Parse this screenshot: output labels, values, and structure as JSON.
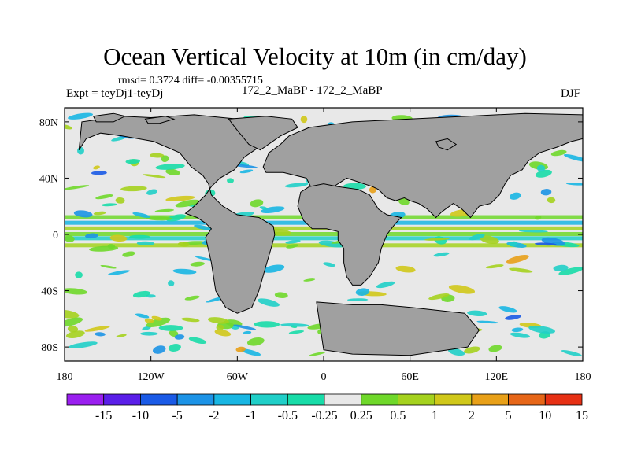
{
  "chart_data": {
    "type": "heatmap",
    "title": "Ocean Vertical Velocity at 10m (in cm/day)",
    "stats_line": "rmsd= 0.3724 diff= -0.00355715",
    "left_label": "Expt = teyDj1-teyDj",
    "center_label": "172_2_MaBP - 172_2_MaBP",
    "right_label": "DJF",
    "xlim": [
      -180,
      180
    ],
    "ylim": [
      -90,
      90
    ],
    "x_ticks": [
      {
        "value": -180,
        "label": "180"
      },
      {
        "value": -120,
        "label": "120W"
      },
      {
        "value": -60,
        "label": "60W"
      },
      {
        "value": 0,
        "label": "0"
      },
      {
        "value": 60,
        "label": "60E"
      },
      {
        "value": 120,
        "label": "120E"
      },
      {
        "value": 180,
        "label": "180"
      }
    ],
    "y_ticks": [
      {
        "value": 80,
        "label": "80N"
      },
      {
        "value": 40,
        "label": "40N"
      },
      {
        "value": 0,
        "label": "0"
      },
      {
        "value": -40,
        "label": "40S"
      },
      {
        "value": -80,
        "label": "80S"
      }
    ],
    "colorbar": {
      "levels": [
        "-15",
        "-10",
        "-5",
        "-2",
        "-1",
        "-0.5",
        "-0.25",
        "0.25",
        "0.5",
        "1",
        "2",
        "5",
        "10",
        "15"
      ],
      "colors": [
        "#9a1ff0",
        "#5a1ee8",
        "#1a5ae6",
        "#1c93e6",
        "#18b6e3",
        "#20cfc8",
        "#18dca8",
        "#e8e8e8",
        "#6fd82a",
        "#a5d21e",
        "#d0c81a",
        "#e8a018",
        "#e66618",
        "#e63014"
      ]
    },
    "land_color": "#a0a0a0",
    "ocean_color": "#e8e8e8",
    "land_polygons": [
      {
        "name": "North America",
        "points": [
          [
            -170,
            60
          ],
          [
            -168,
            80
          ],
          [
            -140,
            84
          ],
          [
            -120,
            83
          ],
          [
            -90,
            85
          ],
          [
            -70,
            83
          ],
          [
            -60,
            82
          ],
          [
            -50,
            80
          ],
          [
            -40,
            78
          ],
          [
            -35,
            72
          ],
          [
            -45,
            62
          ],
          [
            -55,
            55
          ],
          [
            -62,
            46
          ],
          [
            -72,
            40
          ],
          [
            -78,
            34
          ],
          [
            -82,
            28
          ],
          [
            -90,
            20
          ],
          [
            -96,
            15
          ],
          [
            -88,
            12
          ],
          [
            -82,
            8
          ],
          [
            -78,
            4
          ],
          [
            -82,
            -2
          ],
          [
            -78,
            -20
          ],
          [
            -75,
            -40
          ],
          [
            -68,
            -52
          ],
          [
            -60,
            -56
          ],
          [
            -50,
            -52
          ],
          [
            -45,
            -40
          ],
          [
            -40,
            -22
          ],
          [
            -36,
            -8
          ],
          [
            -34,
            0
          ],
          [
            -35,
            6
          ],
          [
            -45,
            12
          ],
          [
            -60,
            14
          ],
          [
            -70,
            20
          ],
          [
            -78,
            28
          ],
          [
            -80,
            36
          ],
          [
            -84,
            42
          ],
          [
            -92,
            48
          ],
          [
            -100,
            58
          ],
          [
            -118,
            66
          ],
          [
            -140,
            70
          ],
          [
            -155,
            72
          ],
          [
            -165,
            68
          ]
        ]
      },
      {
        "name": "Eurasia",
        "points": [
          [
            -38,
            58
          ],
          [
            -42,
            48
          ],
          [
            -40,
            44
          ],
          [
            -28,
            44
          ],
          [
            -12,
            40
          ],
          [
            -8,
            32
          ],
          [
            4,
            32
          ],
          [
            10,
            36
          ],
          [
            16,
            40
          ],
          [
            22,
            38
          ],
          [
            28,
            36
          ],
          [
            34,
            34
          ],
          [
            38,
            32
          ],
          [
            44,
            26
          ],
          [
            50,
            24
          ],
          [
            56,
            26
          ],
          [
            60,
            24
          ],
          [
            66,
            22
          ],
          [
            72,
            18
          ],
          [
            78,
            12
          ],
          [
            82,
            16
          ],
          [
            90,
            22
          ],
          [
            96,
            18
          ],
          [
            102,
            12
          ],
          [
            108,
            20
          ],
          [
            116,
            22
          ],
          [
            122,
            28
          ],
          [
            126,
            36
          ],
          [
            130,
            42
          ],
          [
            138,
            46
          ],
          [
            142,
            52
          ],
          [
            150,
            58
          ],
          [
            162,
            62
          ],
          [
            172,
            66
          ],
          [
            180,
            68
          ],
          [
            180,
            85
          ],
          [
            140,
            86
          ],
          [
            100,
            84
          ],
          [
            60,
            82
          ],
          [
            20,
            80
          ],
          [
            -10,
            76
          ],
          [
            -24,
            70
          ],
          [
            -30,
            64
          ]
        ]
      },
      {
        "name": "Africa",
        "points": [
          [
            -16,
            30
          ],
          [
            -18,
            20
          ],
          [
            -14,
            10
          ],
          [
            -8,
            4
          ],
          [
            2,
            4
          ],
          [
            10,
            2
          ],
          [
            10,
            -4
          ],
          [
            14,
            -10
          ],
          [
            14,
            -20
          ],
          [
            16,
            -30
          ],
          [
            20,
            -36
          ],
          [
            26,
            -36
          ],
          [
            32,
            -30
          ],
          [
            38,
            -20
          ],
          [
            40,
            -10
          ],
          [
            44,
            0
          ],
          [
            50,
            8
          ],
          [
            54,
            12
          ],
          [
            44,
            14
          ],
          [
            38,
            18
          ],
          [
            32,
            28
          ],
          [
            24,
            32
          ],
          [
            10,
            34
          ],
          [
            0,
            36
          ],
          [
            -10,
            34
          ]
        ]
      },
      {
        "name": "Antarctica",
        "points": [
          [
            -5,
            -48
          ],
          [
            20,
            -50
          ],
          [
            40,
            -50
          ],
          [
            62,
            -52
          ],
          [
            80,
            -54
          ],
          [
            98,
            -56
          ],
          [
            108,
            -68
          ],
          [
            100,
            -80
          ],
          [
            60,
            -86
          ],
          [
            20,
            -85
          ],
          [
            0,
            -82
          ]
        ]
      },
      {
        "name": "Greenland",
        "points": [
          [
            -66,
            82
          ],
          [
            -40,
            84
          ],
          [
            -22,
            82
          ],
          [
            -18,
            76
          ],
          [
            -30,
            70
          ],
          [
            -44,
            60
          ],
          [
            -52,
            64
          ],
          [
            -60,
            74
          ]
        ]
      },
      {
        "name": "Arctic Island A",
        "points": [
          [
            -160,
            84
          ],
          [
            -146,
            86
          ],
          [
            -138,
            84
          ],
          [
            -146,
            80
          ],
          [
            -158,
            80
          ]
        ]
      },
      {
        "name": "Arctic Island B",
        "points": [
          [
            -124,
            82
          ],
          [
            -110,
            84
          ],
          [
            -104,
            82
          ],
          [
            -114,
            79
          ],
          [
            -122,
            79
          ]
        ]
      },
      {
        "name": "Island C",
        "points": [
          [
            78,
            66
          ],
          [
            86,
            68
          ],
          [
            92,
            64
          ],
          [
            86,
            60
          ],
          [
            80,
            62
          ]
        ]
      }
    ]
  }
}
